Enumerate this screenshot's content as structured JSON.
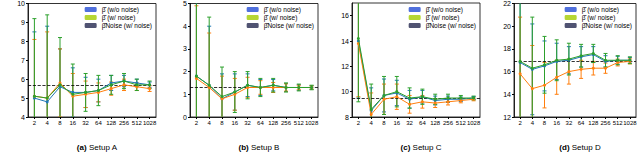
{
  "chart_data": [
    {
      "type": "line",
      "title": "(a) Setup A",
      "categories": [
        "2",
        "4",
        "8",
        "16",
        "32",
        "64",
        "128",
        "256",
        "512",
        "1028"
      ],
      "ylim": [
        4,
        10
      ],
      "yticks": [
        4,
        5,
        6,
        7,
        8,
        9,
        10
      ],
      "grid": false,
      "legend": "upper right",
      "reference_line": 5.7,
      "series": [
        {
          "name": "β̂ (w/o noise)",
          "color": "#1f77b4",
          "marker": "circle",
          "line_style": "solid",
          "values": [
            5.0,
            4.8,
            5.6,
            5.3,
            5.3,
            5.4,
            5.8,
            5.9,
            5.8,
            5.7
          ],
          "errors": [
            3.5,
            4.0,
            2.0,
            1.3,
            0.8,
            0.6,
            0.4,
            0.3,
            0.2,
            0.15
          ]
        },
        {
          "name": "β̂ (w/ noise)",
          "color": "#ff7f0e",
          "marker": "circle",
          "line_style": "solid",
          "values": [
            5.1,
            5.0,
            5.8,
            5.1,
            5.2,
            5.3,
            5.5,
            5.7,
            5.6,
            5.5
          ],
          "errors": [
            3.0,
            3.5,
            1.8,
            1.2,
            0.7,
            0.5,
            0.35,
            0.3,
            0.2,
            0.15
          ]
        },
        {
          "name": "β̂Noise (w/ noise)",
          "color": "#2ca02c",
          "marker": "circle",
          "line_style": "solid",
          "values": [
            5.1,
            5.0,
            5.7,
            5.2,
            5.3,
            5.4,
            5.7,
            5.9,
            5.7,
            5.7
          ],
          "errors": [
            4.1,
            4.4,
            2.5,
            1.6,
            1.0,
            0.8,
            0.5,
            0.4,
            0.3,
            0.2
          ]
        }
      ]
    },
    {
      "type": "line",
      "title": "(b) Setup B",
      "categories": [
        "2",
        "4",
        "8",
        "16",
        "32",
        "64",
        "128",
        "256",
        "512",
        "1028"
      ],
      "ylim": [
        0,
        5
      ],
      "yticks": [
        0,
        1,
        2,
        3,
        4,
        5
      ],
      "grid": false,
      "legend": "upper right",
      "reference_line": 1.3,
      "series": [
        {
          "name": "β̂ (w/o noise)",
          "color": "#1f77b4",
          "marker": "circle",
          "line_style": "solid",
          "values": [
            1.8,
            1.4,
            0.8,
            1.1,
            1.4,
            1.3,
            1.4,
            1.3,
            1.3,
            1.3
          ],
          "errors": [
            3.5,
            2.6,
            1.1,
            0.8,
            0.5,
            0.35,
            0.25,
            0.18,
            0.12,
            0.08
          ]
        },
        {
          "name": "β̂ (w/ noise)",
          "color": "#ff7f0e",
          "marker": "circle",
          "line_style": "solid",
          "values": [
            1.7,
            1.3,
            0.8,
            1.0,
            1.3,
            1.3,
            1.3,
            1.3,
            1.3,
            1.3
          ],
          "errors": [
            3.2,
            2.4,
            1.0,
            0.7,
            0.45,
            0.3,
            0.22,
            0.16,
            0.1,
            0.07
          ]
        },
        {
          "name": "β̂Noise (w/ noise)",
          "color": "#2ca02c",
          "marker": "circle",
          "line_style": "solid",
          "values": [
            1.8,
            1.4,
            0.9,
            1.1,
            1.4,
            1.3,
            1.4,
            1.3,
            1.3,
            1.3
          ],
          "errors": [
            4.0,
            3.0,
            1.3,
            0.9,
            0.6,
            0.4,
            0.3,
            0.2,
            0.15,
            0.1
          ]
        }
      ]
    },
    {
      "type": "line",
      "title": "(c) Setup C",
      "categories": [
        "2",
        "4",
        "8",
        "16",
        "32",
        "64",
        "128",
        "256",
        "512",
        "1028"
      ],
      "ylim": [
        8,
        17
      ],
      "yticks": [
        8,
        10,
        12,
        14,
        16
      ],
      "grid": false,
      "legend": "upper right",
      "reference_line": 9.5,
      "series": [
        {
          "name": "β̂ (w/o noise)",
          "color": "#1f77b4",
          "marker": "circle",
          "line_style": "solid",
          "values": [
            14.0,
            8.5,
            9.7,
            9.9,
            9.4,
            9.6,
            9.3,
            9.4,
            9.4,
            9.5
          ],
          "errors": [
            4.5,
            1.8,
            1.3,
            1.0,
            0.7,
            0.5,
            0.35,
            0.25,
            0.18,
            0.12
          ]
        },
        {
          "name": "β̂ (w/ noise)",
          "color": "#ff7f0e",
          "marker": "circle",
          "line_style": "solid",
          "values": [
            13.8,
            8.2,
            9.4,
            9.6,
            9.0,
            9.2,
            9.1,
            9.2,
            9.3,
            9.4
          ],
          "errors": [
            4.2,
            1.7,
            1.2,
            1.0,
            0.7,
            0.5,
            0.35,
            0.25,
            0.18,
            0.12
          ]
        },
        {
          "name": "β̂Noise (w/ noise)",
          "color": "#2ca02c",
          "marker": "circle",
          "line_style": "solid",
          "values": [
            14.2,
            8.6,
            9.7,
            10.0,
            9.5,
            9.6,
            9.4,
            9.5,
            9.5,
            9.5
          ],
          "errors": [
            5.0,
            2.0,
            1.5,
            1.2,
            0.8,
            0.6,
            0.4,
            0.3,
            0.2,
            0.15
          ]
        }
      ]
    },
    {
      "type": "line",
      "title": "(d) Setup D",
      "categories": [
        "2",
        "4",
        "8",
        "16",
        "32",
        "64",
        "128",
        "256",
        "512",
        "1028"
      ],
      "ylim": [
        12,
        22
      ],
      "yticks": [
        12,
        14,
        16,
        18,
        20,
        22
      ],
      "grid": false,
      "legend": "upper right",
      "reference_line": 16.9,
      "series": [
        {
          "name": "β̂ (w/o noise)",
          "color": "#1f77b4",
          "marker": "circle",
          "line_style": "solid",
          "values": [
            16.8,
            16.2,
            16.5,
            16.9,
            17.0,
            17.3,
            17.5,
            16.9,
            17.0,
            17.0
          ],
          "errors": [
            5.5,
            4.0,
            2.2,
            1.6,
            1.2,
            0.9,
            0.7,
            0.5,
            0.35,
            0.25
          ]
        },
        {
          "name": "β̂ (w/ noise)",
          "color": "#ff7f0e",
          "marker": "circle",
          "line_style": "solid",
          "values": [
            15.8,
            14.5,
            14.8,
            15.5,
            16.0,
            16.2,
            16.3,
            16.3,
            16.8,
            16.9
          ],
          "errors": [
            5.0,
            3.8,
            2.0,
            1.5,
            1.1,
            0.8,
            0.6,
            0.45,
            0.3,
            0.22
          ]
        },
        {
          "name": "β̂Noise (w/ noise)",
          "color": "#2ca02c",
          "marker": "circle",
          "line_style": "solid",
          "values": [
            16.9,
            16.3,
            16.6,
            17.0,
            17.1,
            17.4,
            17.6,
            17.0,
            17.0,
            17.0
          ],
          "errors": [
            6.0,
            4.5,
            2.5,
            1.8,
            1.4,
            1.0,
            0.8,
            0.6,
            0.4,
            0.3
          ]
        }
      ]
    }
  ]
}
